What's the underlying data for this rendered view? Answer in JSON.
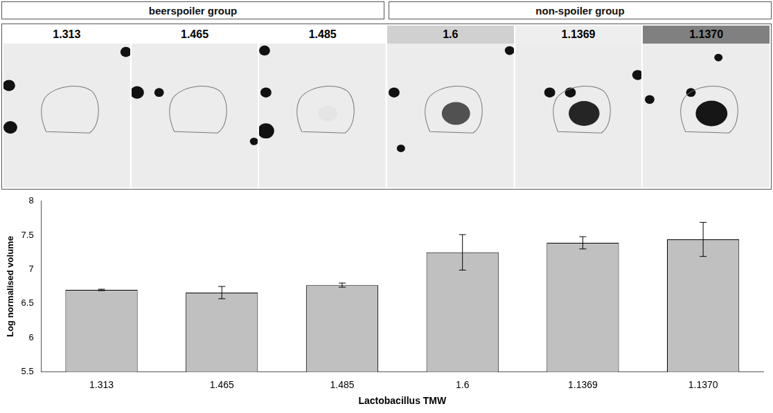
{
  "chart_data": {
    "type": "bar",
    "groups": [
      {
        "label": "beerspoiler group",
        "categories": [
          "1.313",
          "1.465",
          "1.485"
        ]
      },
      {
        "label": "non-spoiler group",
        "categories": [
          "1.6",
          "1.1369",
          "1.1370"
        ]
      }
    ],
    "categories": [
      "1.313",
      "1.465",
      "1.485",
      "1.6",
      "1.1369",
      "1.1370"
    ],
    "values": [
      6.7,
      6.66,
      6.77,
      7.25,
      7.39,
      7.44
    ],
    "errors": [
      0.01,
      0.09,
      0.03,
      0.26,
      0.09,
      0.25
    ],
    "color": "#c0c0c0",
    "x_label": "Lactobacillus TMW",
    "y_label": "Log normalised volume",
    "ylim": [
      5.5,
      8
    ],
    "yticks": [
      5.5,
      6,
      6.5,
      7,
      7.5,
      8
    ],
    "grid": false
  }
}
